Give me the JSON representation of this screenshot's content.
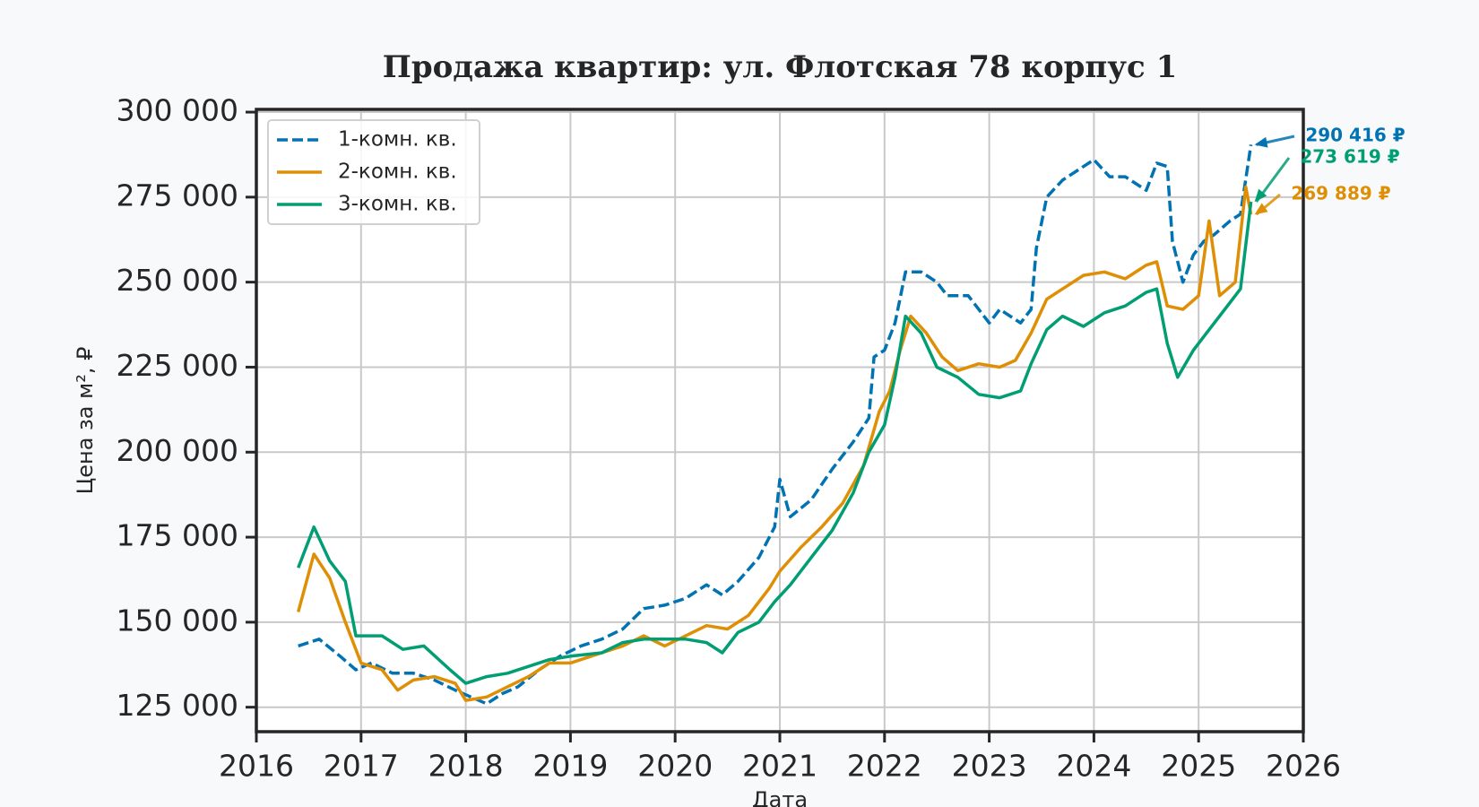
{
  "chart_data": {
    "type": "line",
    "title": "Продажа квартир: ул. Флотская 78 корпус 1",
    "xlabel": "Дата",
    "ylabel": "Цена за м², ₽",
    "xlim": [
      2016,
      2026
    ],
    "xticks": [
      2016,
      2017,
      2018,
      2019,
      2020,
      2021,
      2022,
      2023,
      2024,
      2025,
      2026
    ],
    "ylim": [
      117800,
      300800
    ],
    "yticks": [
      {
        "value": 125000,
        "label": "125 000"
      },
      {
        "value": 150000,
        "label": "150 000"
      },
      {
        "value": 175000,
        "label": "175 000"
      },
      {
        "value": 200000,
        "label": "200 000"
      },
      {
        "value": 225000,
        "label": "225 000"
      },
      {
        "value": 250000,
        "label": "250 000"
      },
      {
        "value": 275000,
        "label": "275 000"
      },
      {
        "value": 300000,
        "label": "300 000"
      }
    ],
    "grid": true,
    "legend": "upper left",
    "series": [
      {
        "name": "1-комн. кв.",
        "color": "#0173b2",
        "linestyle": "dashed",
        "end_label": "290 416 ₽",
        "x": [
          2016.4,
          2016.6,
          2016.8,
          2016.95,
          2017.1,
          2017.3,
          2017.5,
          2017.7,
          2017.9,
          2018.05,
          2018.2,
          2018.35,
          2018.5,
          2018.7,
          2018.9,
          2019.1,
          2019.3,
          2019.5,
          2019.7,
          2019.9,
          2020.1,
          2020.3,
          2020.45,
          2020.6,
          2020.8,
          2020.95,
          2021.0,
          2021.1,
          2021.3,
          2021.5,
          2021.7,
          2021.85,
          2021.9,
          2022.0,
          2022.1,
          2022.2,
          2022.35,
          2022.5,
          2022.6,
          2022.8,
          2023.0,
          2023.1,
          2023.3,
          2023.4,
          2023.45,
          2023.55,
          2023.7,
          2023.85,
          2024.0,
          2024.15,
          2024.3,
          2024.5,
          2024.6,
          2024.7,
          2024.75,
          2024.85,
          2024.95,
          2025.05,
          2025.15,
          2025.3,
          2025.4,
          2025.5
        ],
        "values": [
          143000,
          145000,
          140000,
          136000,
          138000,
          135000,
          135000,
          133000,
          130000,
          128000,
          126000,
          129000,
          131000,
          136000,
          140000,
          143000,
          145000,
          148000,
          154000,
          155000,
          157000,
          161000,
          158000,
          162000,
          169000,
          178000,
          192000,
          181000,
          186000,
          195000,
          203000,
          210000,
          228000,
          230000,
          238000,
          253000,
          253000,
          250000,
          246000,
          246000,
          238000,
          242000,
          238000,
          242000,
          260000,
          275000,
          280000,
          283000,
          286000,
          281000,
          281000,
          277000,
          285000,
          284000,
          262000,
          250000,
          258000,
          262000,
          264000,
          268000,
          270000,
          290416
        ]
      },
      {
        "name": "2-комн. кв.",
        "color": "#de8f05",
        "linestyle": "solid",
        "end_label": "269 889 ₽",
        "x": [
          2016.4,
          2016.55,
          2016.7,
          2016.85,
          2017.0,
          2017.2,
          2017.35,
          2017.5,
          2017.7,
          2017.9,
          2018.0,
          2018.2,
          2018.4,
          2018.6,
          2018.8,
          2019.0,
          2019.3,
          2019.5,
          2019.7,
          2019.9,
          2020.1,
          2020.3,
          2020.5,
          2020.7,
          2020.9,
          2021.0,
          2021.2,
          2021.4,
          2021.6,
          2021.8,
          2021.95,
          2022.05,
          2022.15,
          2022.25,
          2022.4,
          2022.55,
          2022.7,
          2022.9,
          2023.1,
          2023.25,
          2023.4,
          2023.55,
          2023.7,
          2023.9,
          2024.1,
          2024.3,
          2024.5,
          2024.6,
          2024.7,
          2024.85,
          2025.0,
          2025.1,
          2025.2,
          2025.35,
          2025.45,
          2025.5
        ],
        "values": [
          153000,
          170000,
          163000,
          150000,
          138000,
          136000,
          130000,
          133000,
          134000,
          132000,
          127000,
          128000,
          131000,
          134000,
          138000,
          138000,
          141000,
          143000,
          146000,
          143000,
          146000,
          149000,
          148000,
          152000,
          160000,
          165000,
          172000,
          178000,
          185000,
          196000,
          212000,
          218000,
          230000,
          240000,
          235000,
          228000,
          224000,
          226000,
          225000,
          227000,
          235000,
          245000,
          248000,
          252000,
          253000,
          251000,
          255000,
          256000,
          243000,
          242000,
          246000,
          268000,
          246000,
          250000,
          278000,
          269889
        ]
      },
      {
        "name": "3-комн. кв.",
        "color": "#029e73",
        "linestyle": "solid",
        "end_label": "273 619 ₽",
        "x": [
          2016.4,
          2016.55,
          2016.7,
          2016.85,
          2016.95,
          2017.2,
          2017.4,
          2017.6,
          2017.85,
          2018.0,
          2018.2,
          2018.4,
          2018.6,
          2018.8,
          2019.0,
          2019.3,
          2019.5,
          2019.7,
          2019.9,
          2020.1,
          2020.3,
          2020.45,
          2020.6,
          2020.8,
          2020.95,
          2021.1,
          2021.3,
          2021.5,
          2021.7,
          2021.85,
          2022.0,
          2022.1,
          2022.2,
          2022.35,
          2022.5,
          2022.7,
          2022.9,
          2023.1,
          2023.3,
          2023.4,
          2023.55,
          2023.7,
          2023.9,
          2024.1,
          2024.3,
          2024.5,
          2024.6,
          2024.7,
          2024.8,
          2024.95,
          2025.1,
          2025.25,
          2025.4,
          2025.5
        ],
        "values": [
          166000,
          178000,
          168000,
          162000,
          146000,
          146000,
          142000,
          143000,
          136000,
          132000,
          134000,
          135000,
          137000,
          139000,
          140000,
          141000,
          144000,
          145000,
          145000,
          145000,
          144000,
          141000,
          147000,
          150000,
          156000,
          161000,
          169000,
          177000,
          188000,
          200000,
          208000,
          222000,
          240000,
          235000,
          225000,
          222000,
          217000,
          216000,
          218000,
          226000,
          236000,
          240000,
          237000,
          241000,
          243000,
          247000,
          248000,
          232000,
          222000,
          230000,
          236000,
          242000,
          248000,
          273619
        ]
      }
    ]
  }
}
